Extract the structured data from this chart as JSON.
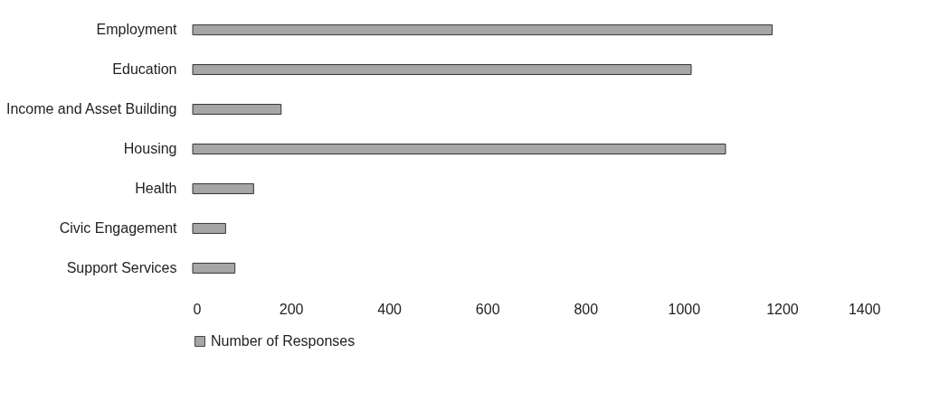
{
  "chart_data": {
    "type": "bar",
    "orientation": "horizontal",
    "categories": [
      "Employment",
      "Education",
      "Income and Asset Building",
      "Housing",
      "Health",
      "Civic Engagement",
      "Support Services"
    ],
    "series": [
      {
        "name": "Number of Responses",
        "color": "#a6a6a6",
        "values": [
          1180,
          1015,
          180,
          1085,
          124,
          67,
          86
        ]
      }
    ],
    "xlim": [
      0,
      1400
    ],
    "xticks": [
      0,
      200,
      400,
      600,
      800,
      1000,
      1200,
      1400
    ],
    "grid": false,
    "legend": "bottom"
  }
}
